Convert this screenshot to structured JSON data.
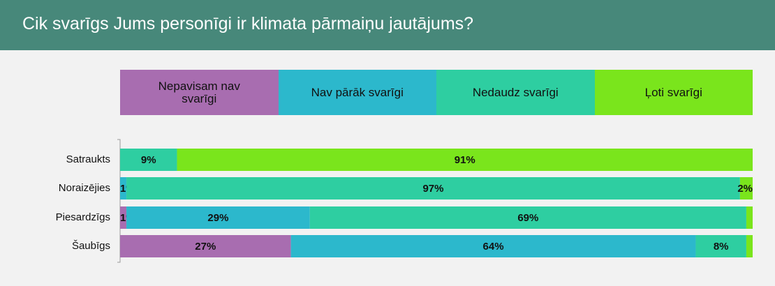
{
  "chart_data": {
    "type": "stacked_bar_horizontal",
    "title": "Cik svarīgs Jums personīgi ir klimata pārmaiņu jautājums?",
    "categories": [
      "Satraukts",
      "Noraizējies",
      "Piesardzīgs",
      "Šaubīgs"
    ],
    "xlim": [
      0,
      100
    ],
    "legend": "top",
    "series": [
      {
        "name": "Nepavisam nav svarīgi",
        "color": "#a86db0",
        "values": [
          0,
          0,
          1,
          27
        ],
        "value_labels": [
          null,
          null,
          "1%",
          "27%"
        ]
      },
      {
        "name": "Nav pārāk svarīgi",
        "color": "#2cb8cc",
        "values": [
          0,
          1,
          29,
          64
        ],
        "value_labels": [
          null,
          "1%",
          "29%",
          "64%"
        ]
      },
      {
        "name": "Nedaudz svarīgi",
        "color": "#2ecea1",
        "values": [
          9,
          97,
          69,
          8
        ],
        "value_labels": [
          "9%",
          "97%",
          "69%",
          "8%"
        ]
      },
      {
        "name": "Ļoti svarīgi",
        "color": "#7ae51c",
        "values": [
          91,
          2,
          1,
          1
        ],
        "value_labels": [
          "91%",
          "2%",
          null,
          null
        ]
      }
    ]
  }
}
